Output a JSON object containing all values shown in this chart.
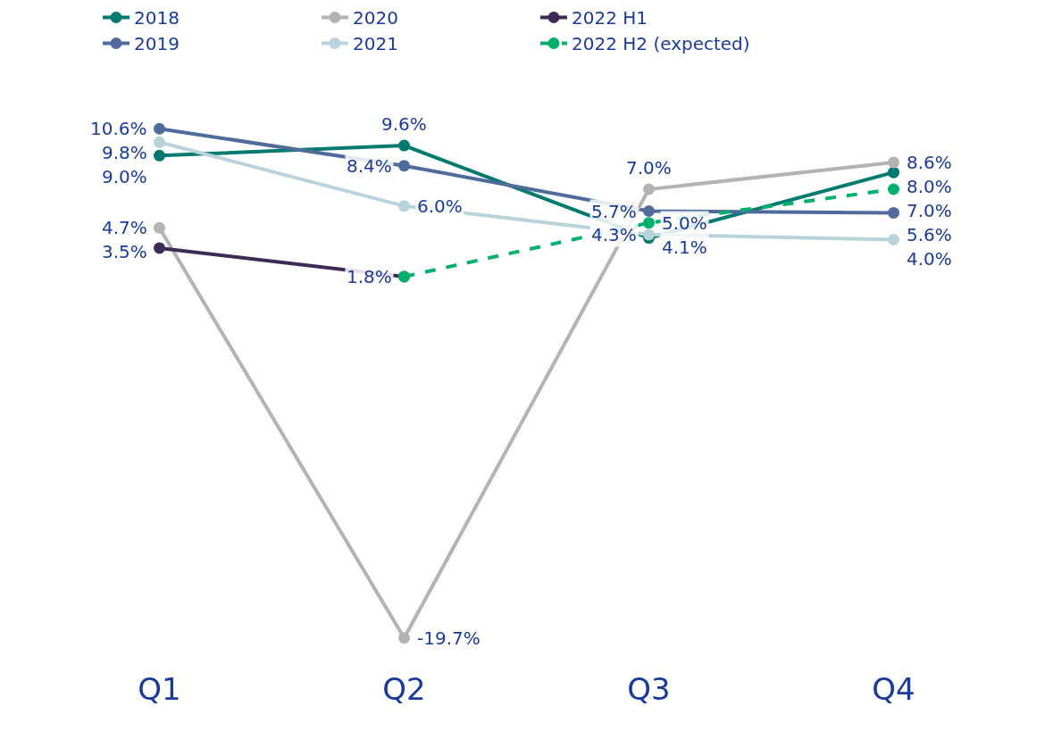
{
  "chart_data": {
    "type": "line",
    "categories": [
      "Q1",
      "Q2",
      "Q3",
      "Q4"
    ],
    "marker": "circle",
    "legend": "top left",
    "grid": false,
    "tick_labels": "x",
    "series": [
      {
        "name": "2018",
        "color": "#007a6e",
        "values": [
          9.0,
          9.6,
          4.1,
          8.0
        ],
        "value_labels": [
          "9.0%",
          "9.6%",
          "4.1%",
          "8.0%"
        ]
      },
      {
        "name": "2019",
        "color": "#4f6b9c",
        "values": [
          10.6,
          8.4,
          5.7,
          5.6
        ],
        "value_labels": [
          "10.6%",
          "8.4%",
          "5.7%",
          "5.6%"
        ]
      },
      {
        "name": "2020",
        "color": "#b3b3b3",
        "values": [
          4.7,
          -19.7,
          7.0,
          8.6
        ],
        "value_labels": [
          "4.7%",
          "-19.7%",
          "7.0%",
          "8.6%"
        ]
      },
      {
        "name": "2021",
        "color": "#b9d3dc",
        "values": [
          9.8,
          6.0,
          4.3,
          4.0
        ],
        "value_labels": [
          "9.8%",
          "6.0%",
          "4.3%",
          "4.0%"
        ]
      },
      {
        "name": "2022 H1",
        "color": "#3d2b56",
        "values": [
          3.5,
          1.8,
          null,
          null
        ],
        "value_labels": [
          "3.5%",
          "1.8%",
          null,
          null
        ]
      },
      {
        "name": "2022 H2 (expected)",
        "color": "#00b06b",
        "line_style": "dashed",
        "values": [
          null,
          1.8,
          5.0,
          7.0
        ],
        "value_labels": [
          null,
          null,
          "5.0%",
          "7.0%"
        ]
      }
    ]
  }
}
